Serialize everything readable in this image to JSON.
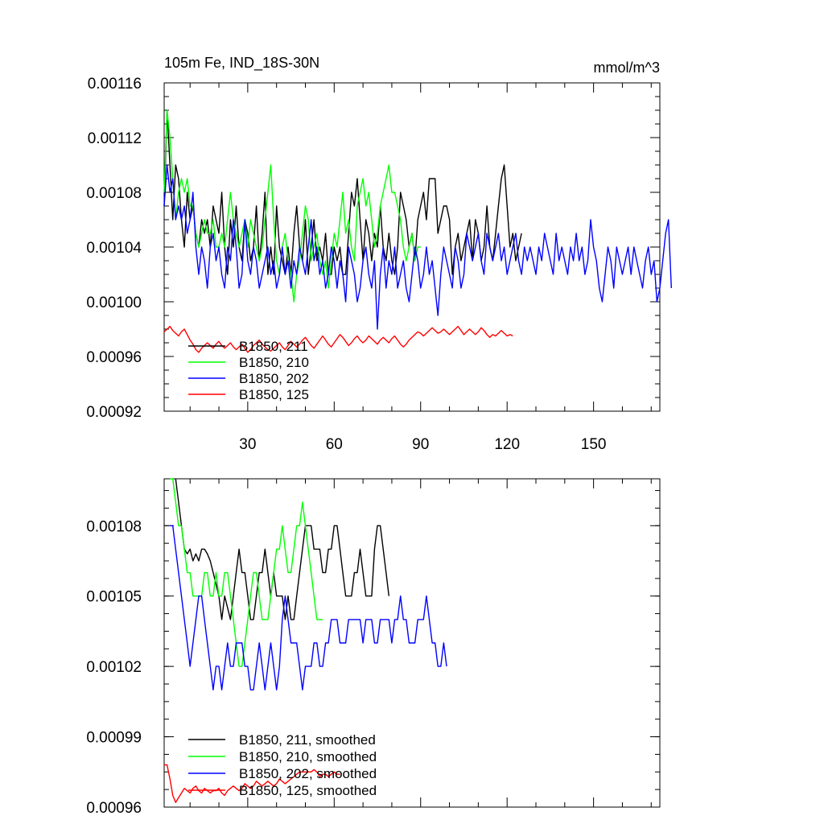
{
  "chart_data": [
    {
      "type": "line",
      "title": "105m Fe, IND_18S-30N",
      "units": "mmol/m^3",
      "xlim": [
        1,
        173
      ],
      "ylim": [
        0.00092,
        0.00116
      ],
      "xticks": [
        30,
        60,
        90,
        120,
        150
      ],
      "xtick_labels": [
        "30",
        "60",
        "90",
        "120",
        "150"
      ],
      "yticks": [
        0.00092,
        0.00096,
        0.001,
        0.00104,
        0.00108,
        0.00112,
        0.00116
      ],
      "ytick_labels": [
        "0.00092",
        "0.00096",
        "0.00100",
        "0.00104",
        "0.00108",
        "0.00112",
        "0.00116"
      ],
      "legend_position": "lower-left",
      "series": [
        {
          "name": "B1850, 211",
          "color": "#000000",
          "x0": 1,
          "values": [
            0.00107,
            0.00114,
            0.0011,
            0.00106,
            0.0011,
            0.00109,
            0.00106,
            0.00104,
            0.00108,
            0.00106,
            0.00107,
            0.00105,
            0.00104,
            0.00106,
            0.00105,
            0.00106,
            0.00104,
            0.00107,
            0.00106,
            0.00105,
            0.00108,
            0.00104,
            0.00102,
            0.00106,
            0.00104,
            0.00107,
            0.00104,
            0.00103,
            0.00106,
            0.00105,
            0.00103,
            0.00104,
            0.00107,
            0.00103,
            0.00105,
            0.00108,
            0.00102,
            0.00104,
            0.00102,
            0.00107,
            0.00104,
            0.00103,
            0.00102,
            0.00104,
            0.00102,
            0.00105,
            0.00107,
            0.00104,
            0.00103,
            0.00106,
            0.00102,
            0.00104,
            0.00106,
            0.00103,
            0.00104,
            0.00103,
            0.00105,
            0.00102,
            0.00102,
            0.00104,
            0.00103,
            0.00104,
            0.00102,
            0.00102,
            0.00105,
            0.00108,
            0.00107,
            0.00109,
            0.00106,
            0.00103,
            0.00106,
            0.00105,
            0.00103,
            0.00105,
            0.00104,
            0.00107,
            0.00104,
            0.00103,
            0.00105,
            0.00103,
            0.00102,
            0.00104,
            0.00108,
            0.00107,
            0.00106,
            0.00104,
            0.00105,
            0.00103,
            0.00106,
            0.00107,
            0.00108,
            0.00106,
            0.00109,
            0.00109,
            0.00109,
            0.00105,
            0.00106,
            0.00107,
            0.00107,
            0.00106,
            0.00102,
            0.00104,
            0.00105,
            0.00103,
            0.00104,
            0.00105,
            0.00106,
            0.00103,
            0.00106,
            0.00105,
            0.00103,
            0.00104,
            0.00107,
            0.00104,
            0.00103,
            0.00105,
            0.00107,
            0.00109,
            0.0011,
            0.00107,
            0.00104,
            0.00105,
            0.00103,
            0.00104,
            0.00105
          ]
        },
        {
          "name": "B1850, 210",
          "color": "#00ff00",
          "x0": 1,
          "values": [
            0.00108,
            0.00114,
            0.00112,
            0.00109,
            0.00106,
            0.00108,
            0.00109,
            0.00108,
            0.00109,
            0.00107,
            0.00107,
            0.00105,
            0.00104,
            0.00105,
            0.00106,
            0.00105,
            0.00105,
            0.00106,
            0.00104,
            0.00104,
            0.00105,
            0.00104,
            0.00106,
            0.00108,
            0.00106,
            0.00105,
            0.00104,
            0.00105,
            0.00106,
            0.00104,
            0.00106,
            0.00105,
            0.00104,
            0.00103,
            0.00104,
            0.00106,
            0.00108,
            0.0011,
            0.00106,
            0.00103,
            0.00102,
            0.00104,
            0.00105,
            0.00103,
            0.00102,
            0.001,
            0.00102,
            0.00103,
            0.00105,
            0.00107,
            0.00106,
            0.00103,
            0.00104,
            0.00105,
            0.00103,
            0.00102,
            0.00103,
            0.00101,
            0.00103,
            0.00105,
            0.00104,
            0.00106,
            0.00108,
            0.00105,
            0.00106,
            0.00104,
            0.00103,
            0.00107,
            0.00108,
            0.00109,
            0.00107,
            0.00108,
            0.00106,
            0.00104,
            0.00105,
            0.00107,
            0.00108,
            0.00109,
            0.0011,
            0.00108,
            0.00108,
            0.00107,
            0.00106,
            0.00104,
            0.00103,
            0.00104,
            0.00105,
            0.00103,
            0.00104,
            0.00104
          ]
        },
        {
          "name": "B1850, 202",
          "color": "#0000ff",
          "x0": 1,
          "values": [
            0.00107,
            0.0011,
            0.00108,
            0.00109,
            0.00106,
            0.00107,
            0.00106,
            0.00107,
            0.00105,
            0.00106,
            0.00108,
            0.00104,
            0.00102,
            0.00104,
            0.00103,
            0.00101,
            0.00104,
            0.00105,
            0.00103,
            0.00104,
            0.00102,
            0.00101,
            0.00104,
            0.00103,
            0.00106,
            0.00104,
            0.00101,
            0.00102,
            0.00106,
            0.00103,
            0.00102,
            0.00104,
            0.00103,
            0.00101,
            0.00102,
            0.00103,
            0.00104,
            0.00102,
            0.00103,
            0.00101,
            0.00102,
            0.00104,
            0.00102,
            0.00103,
            0.00101,
            0.00103,
            0.00102,
            0.00104,
            0.00103,
            0.00102,
            0.00104,
            0.00106,
            0.00103,
            0.00104,
            0.00102,
            0.00103,
            0.00101,
            0.00102,
            0.00104,
            0.00103,
            0.00101,
            0.00103,
            0.00102,
            0.001,
            0.00104,
            0.00103,
            0.00102,
            0.001,
            0.00101,
            0.00103,
            0.00104,
            0.00102,
            0.00101,
            0.00103,
            0.00098,
            0.00102,
            0.00104,
            0.00101,
            0.00103,
            0.00102,
            0.00104,
            0.00101,
            0.00102,
            0.00103,
            0.00101,
            0.001,
            0.00102,
            0.00104,
            0.00103,
            0.00101,
            0.00102,
            0.00104,
            0.00102,
            0.00103,
            0.00101,
            0.00099,
            0.00102,
            0.00104,
            0.00103,
            0.00102,
            0.00101,
            0.00104,
            0.00103,
            0.00101,
            0.00102,
            0.00105,
            0.00104,
            0.00103,
            0.00104,
            0.00105,
            0.00103,
            0.00102,
            0.00105,
            0.00104,
            0.00103,
            0.00104,
            0.00105,
            0.00103,
            0.00104,
            0.00102,
            0.00103,
            0.00104,
            0.00105,
            0.00103,
            0.00102,
            0.00104,
            0.00103,
            0.00104,
            0.00103,
            0.00102,
            0.00104,
            0.00103,
            0.00105,
            0.00104,
            0.00103,
            0.00102,
            0.00105,
            0.00103,
            0.00104,
            0.00103,
            0.00102,
            0.00104,
            0.00103,
            0.00105,
            0.00103,
            0.00104,
            0.00102,
            0.00103,
            0.00106,
            0.00104,
            0.00103,
            0.00101,
            0.001,
            0.00102,
            0.00104,
            0.00103,
            0.00101,
            0.00104,
            0.00103,
            0.00102,
            0.00103,
            0.00104,
            0.00102,
            0.00104,
            0.00103,
            0.00102,
            0.00101,
            0.00103,
            0.00104,
            0.00102,
            0.00103,
            0.001,
            0.00101,
            0.00103,
            0.00105,
            0.00106,
            0.00101
          ]
        },
        {
          "name": "B1850, 125",
          "color": "#ff0000",
          "x0": 1,
          "values": [
            0.000978,
            0.00098,
            0.000982,
            0.000979,
            0.000977,
            0.000975,
            0.000978,
            0.00098,
            0.000976,
            0.000972,
            0.000969,
            0.000965,
            0.000963,
            0.000966,
            0.000968,
            0.00097,
            0.000968,
            0.000966,
            0.000969,
            0.000971,
            0.000968,
            0.000966,
            0.000968,
            0.00097,
            0.000967,
            0.000965,
            0.000967,
            0.000969,
            0.000966,
            0.000963,
            0.000965,
            0.000968,
            0.00097,
            0.000972,
            0.000969,
            0.000967,
            0.000965,
            0.000964,
            0.000966,
            0.000968,
            0.00097,
            0.000967,
            0.000965,
            0.000968,
            0.000971,
            0.000969,
            0.000967,
            0.000969,
            0.000972,
            0.000974,
            0.000971,
            0.000968,
            0.000966,
            0.000969,
            0.000972,
            0.000975,
            0.000972,
            0.000969,
            0.000967,
            0.00097,
            0.000973,
            0.000976,
            0.000974,
            0.000971,
            0.000968,
            0.00097,
            0.000973,
            0.000975,
            0.000972,
            0.00097,
            0.000972,
            0.000975,
            0.000973,
            0.000971,
            0.000969,
            0.000972,
            0.000974,
            0.000972,
            0.00097,
            0.000973,
            0.000975,
            0.000972,
            0.000969,
            0.000967,
            0.000969,
            0.000972,
            0.000974,
            0.000976,
            0.000978,
            0.000977,
            0.000975,
            0.000977,
            0.000979,
            0.000981,
            0.000979,
            0.000977,
            0.000978,
            0.00098,
            0.000978,
            0.000976,
            0.000978,
            0.00098,
            0.000982,
            0.000979,
            0.000976,
            0.000978,
            0.00098,
            0.000978,
            0.000976,
            0.000978,
            0.000981,
            0.000979,
            0.000976,
            0.000974,
            0.000976,
            0.000975,
            0.000977,
            0.000979,
            0.000977,
            0.000975,
            0.000976,
            0.000975
          ]
        }
      ],
      "legend": [
        "B1850, 211",
        "B1850, 210",
        "B1850, 202",
        "B1850, 125"
      ]
    },
    {
      "type": "line",
      "title": "",
      "xlim": [
        1,
        173
      ],
      "ylim": [
        0.00096,
        0.0011
      ],
      "yticks": [
        0.00096,
        0.00099,
        0.00102,
        0.00105,
        0.00108
      ],
      "ytick_labels": [
        "0.00096",
        "0.00099",
        "0.00102",
        "0.00105",
        "0.00108"
      ],
      "legend_position": "lower-left",
      "series": [
        {
          "name": "B1850, 211, smoothed",
          "color": "#000000",
          "x0": 5,
          "values": [
            0.0011,
            0.00109,
            0.00108,
            0.00107,
            0.001068,
            0.00107,
            0.001065,
            0.001068,
            0.001065,
            0.00107,
            0.00107,
            0.001068,
            0.001065,
            0.00106,
            0.001055,
            0.00105,
            0.00104,
            0.00105,
            0.001045,
            0.00104,
            0.00105,
            0.00106,
            0.00107,
            0.00106,
            0.00106,
            0.00105,
            0.00104,
            0.00104,
            0.00105,
            0.00106,
            0.00106,
            0.00107,
            0.00106,
            0.00105,
            0.00106,
            0.00105,
            0.00105,
            0.00105,
            0.00104,
            0.00105,
            0.00104,
            0.00104,
            0.00105,
            0.00106,
            0.00107,
            0.00108,
            0.00108,
            0.00108,
            0.00107,
            0.00107,
            0.00107,
            0.00106,
            0.00106,
            0.00107,
            0.00107,
            0.00108,
            0.00108,
            0.00107,
            0.00106,
            0.00105,
            0.00105,
            0.00105,
            0.00106,
            0.00106,
            0.00107,
            0.00106,
            0.00105,
            0.00105,
            0.00105,
            0.00107,
            0.00108,
            0.00108,
            0.00107,
            0.00106,
            0.00105
          ]
        },
        {
          "name": "B1850, 210, smoothed",
          "color": "#00ff00",
          "x0": 3,
          "values": [
            0.0011,
            0.0011,
            0.00109,
            0.00108,
            0.00108,
            0.00107,
            0.00106,
            0.00106,
            0.00105,
            0.00105,
            0.00105,
            0.00105,
            0.00106,
            0.00106,
            0.00105,
            0.00105,
            0.00106,
            0.00105,
            0.00105,
            0.00106,
            0.00106,
            0.00105,
            0.00104,
            0.00103,
            0.00102,
            0.00102,
            0.00103,
            0.00104,
            0.00105,
            0.00106,
            0.00106,
            0.00105,
            0.00104,
            0.00104,
            0.00104,
            0.00105,
            0.00106,
            0.00107,
            0.00107,
            0.00108,
            0.00107,
            0.00106,
            0.00106,
            0.00107,
            0.00108,
            0.00108,
            0.00109,
            0.00108,
            0.00107,
            0.00106,
            0.00105,
            0.00104,
            0.00104,
            0.00104
          ]
        },
        {
          "name": "B1850, 202, smoothed",
          "color": "#0000ff",
          "x0": 3,
          "values": [
            0.00108,
            0.00108,
            0.00107,
            0.00106,
            0.00105,
            0.00104,
            0.00103,
            0.00102,
            0.00103,
            0.00104,
            0.00105,
            0.00105,
            0.00104,
            0.00103,
            0.00102,
            0.00101,
            0.00102,
            0.00102,
            0.00101,
            0.00102,
            0.00103,
            0.00102,
            0.00102,
            0.00103,
            0.00103,
            0.00103,
            0.00102,
            0.00102,
            0.00101,
            0.00101,
            0.00102,
            0.00103,
            0.00102,
            0.00101,
            0.00102,
            0.00103,
            0.00102,
            0.00101,
            0.00102,
            0.00104,
            0.00105,
            0.00104,
            0.00103,
            0.00103,
            0.00103,
            0.00102,
            0.00101,
            0.00102,
            0.00102,
            0.00102,
            0.00103,
            0.00103,
            0.00102,
            0.00102,
            0.00103,
            0.00103,
            0.00104,
            0.00104,
            0.00104,
            0.00103,
            0.00103,
            0.00103,
            0.00104,
            0.00104,
            0.00104,
            0.00104,
            0.00104,
            0.00103,
            0.00104,
            0.00104,
            0.00104,
            0.00103,
            0.00103,
            0.00104,
            0.00104,
            0.00104,
            0.00104,
            0.00103,
            0.00104,
            0.00104,
            0.00105,
            0.00104,
            0.00104,
            0.00103,
            0.00103,
            0.00103,
            0.00104,
            0.00104,
            0.00104,
            0.00105,
            0.00104,
            0.00103,
            0.00103,
            0.00102,
            0.00102,
            0.00103,
            0.00102
          ]
        },
        {
          "name": "B1850, 125, smoothed",
          "color": "#ff0000",
          "x0": 1,
          "values": [
            0.000978,
            0.000978,
            0.000972,
            0.000965,
            0.000962,
            0.000964,
            0.000966,
            0.000968,
            0.000967,
            0.000966,
            0.000968,
            0.000969,
            0.000967,
            0.000966,
            0.000968,
            0.000967,
            0.000966,
            0.000967,
            0.000967,
            0.000968,
            0.000966,
            0.000965,
            0.000967,
            0.000968,
            0.000969,
            0.000968,
            0.000967,
            0.000968,
            0.00097,
            0.000969,
            0.000968,
            0.000969,
            0.000971,
            0.00097,
            0.000969,
            0.00097,
            0.000971,
            0.00097,
            0.000969,
            0.00097,
            0.000972,
            0.000971,
            0.00097,
            0.000971,
            0.000972,
            0.000973,
            0.000974,
            0.000975,
            0.000975,
            0.000975,
            0.000975,
            0.000975,
            0.000976,
            0.000975,
            0.000973,
            0.000974,
            0.000974,
            0.000973,
            0.000974,
            0.000975,
            0.000974,
            0.000974
          ]
        }
      ],
      "legend": [
        "B1850, 211, smoothed",
        "B1850, 210, smoothed",
        "B1850, 202, smoothed",
        "B1850, 125, smoothed"
      ]
    }
  ]
}
